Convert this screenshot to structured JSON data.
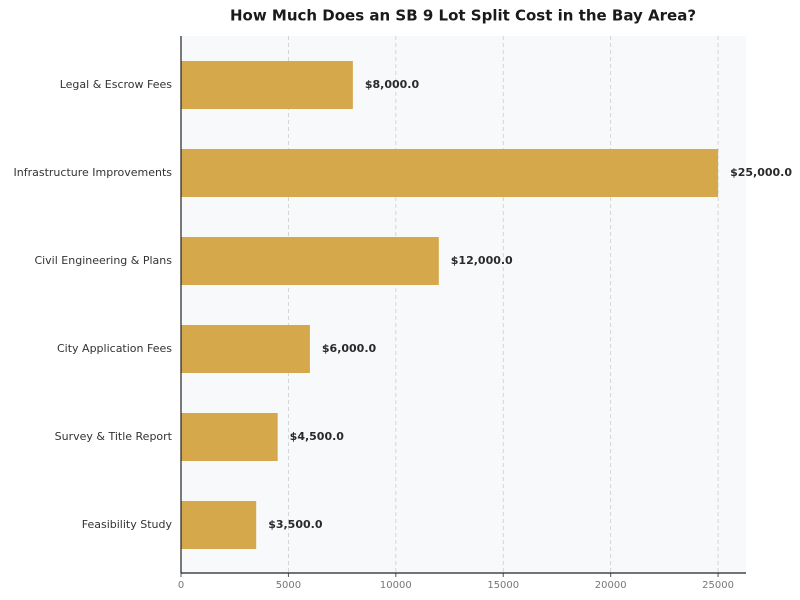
{
  "chart_data": {
    "type": "bar",
    "orientation": "horizontal",
    "title": "How Much Does an SB 9 Lot Split Cost in the Bay Area?",
    "categories": [
      "Legal & Escrow Fees",
      "Infrastructure Improvements",
      "Civil Engineering & Plans",
      "City Application Fees",
      "Survey & Title Report",
      "Feasibility Study"
    ],
    "values": [
      8000,
      25000,
      12000,
      6000,
      4500,
      3500
    ],
    "value_labels": [
      "$8,000.0",
      "$25,000.0",
      "$12,000.0",
      "$6,000.0",
      "$4,500.0",
      "$3,500.0"
    ],
    "color": "#d4a84b",
    "xlim": [
      0,
      26300
    ],
    "xticks": [
      0,
      5000,
      10000,
      15000,
      20000,
      25000
    ],
    "grid": true
  }
}
